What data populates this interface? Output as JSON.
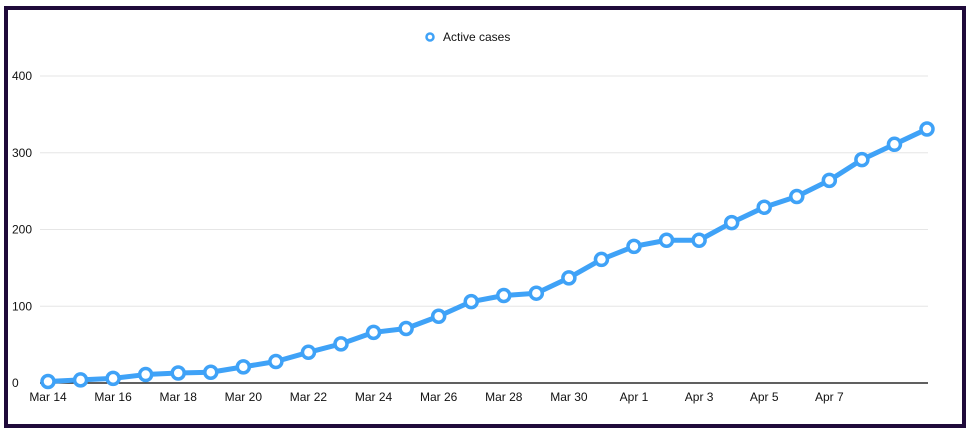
{
  "chart_data": {
    "type": "line",
    "title": "",
    "legend": {
      "label": "Active cases",
      "placement": "top-center"
    },
    "color": "#3fa2f7",
    "x": [
      "Mar 14",
      "Mar 15",
      "Mar 16",
      "Mar 17",
      "Mar 18",
      "Mar 19",
      "Mar 20",
      "Mar 21",
      "Mar 22",
      "Mar 23",
      "Mar 24",
      "Mar 25",
      "Mar 26",
      "Mar 27",
      "Mar 28",
      "Mar 29",
      "Mar 30",
      "Mar 31",
      "Apr 1",
      "Apr 2",
      "Apr 3",
      "Apr 4",
      "Apr 5",
      "Apr 6",
      "Apr 7",
      "Apr 8",
      "Apr 9",
      "Apr 10"
    ],
    "x_tick_labels": [
      "Mar 14",
      "Mar 16",
      "Mar 18",
      "Mar 20",
      "Mar 22",
      "Mar 24",
      "Mar 26",
      "Mar 28",
      "Mar 30",
      "Apr 1",
      "Apr 3",
      "Apr 5",
      "Apr 7"
    ],
    "series": [
      {
        "name": "Active cases",
        "values": [
          2,
          4,
          6,
          11,
          13,
          14,
          21,
          28,
          40,
          51,
          66,
          71,
          87,
          106,
          114,
          117,
          137,
          161,
          178,
          186,
          186,
          209,
          229,
          243,
          264,
          291,
          311,
          331
        ]
      }
    ],
    "y_ticks": [
      0,
      100,
      200,
      300,
      400
    ],
    "ylim": [
      0,
      400
    ],
    "grid": true,
    "xlabel": "",
    "ylabel": ""
  }
}
